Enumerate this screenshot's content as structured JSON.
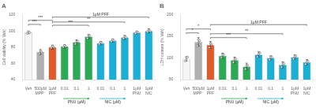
{
  "chart_data": [
    {
      "type": "bar",
      "title": "A",
      "ylabel": "Cell viability (% Veh)",
      "categories": [
        "Veh",
        [
          "500μM",
          "MPP⁺"
        ],
        [
          "1μM",
          "PFF"
        ],
        "0.01",
        "0.1",
        "1",
        "0.01",
        "0.1",
        "1",
        [
          "1μM",
          "PNU"
        ],
        [
          "1μM",
          "NIC"
        ]
      ],
      "values": [
        98,
        74,
        80,
        81,
        86,
        93,
        85,
        88,
        92,
        98,
        100
      ],
      "errors": [
        1.5,
        3,
        2.5,
        2,
        3,
        2.5,
        2,
        2,
        2.5,
        1.5,
        2.5
      ],
      "points": [
        [
          97,
          99,
          98
        ],
        [
          72,
          75,
          74
        ],
        [
          79,
          81,
          80
        ],
        [
          80,
          82,
          81
        ],
        [
          84,
          87,
          87
        ],
        [
          91,
          94,
          94
        ],
        [
          84,
          86,
          85
        ],
        [
          87,
          89,
          88
        ],
        [
          91,
          93,
          92
        ],
        [
          97,
          99,
          98
        ],
        [
          99,
          101,
          100
        ]
      ],
      "colors": [
        "#f5f5f5",
        "#b0b0b0",
        "#e05a2b",
        "#2aaa55",
        "#2aaa55",
        "#2aaa55",
        "#1ab0d5",
        "#1ab0d5",
        "#1ab0d5",
        "#1ab0d5",
        "#1ab0d5"
      ],
      "ylim": [
        40,
        120
      ],
      "yticks": [
        40,
        60,
        80,
        100,
        120
      ],
      "grid": false,
      "brackets": [
        {
          "x1": 0,
          "x2": 1,
          "y": 108,
          "label": "***"
        },
        {
          "x1": 0,
          "x2": 2,
          "y": 113,
          "label": "***"
        },
        {
          "x1": 2,
          "x2": 5,
          "y": 107,
          "label": "***"
        },
        {
          "x1": 2,
          "x2": 8,
          "y": 111,
          "label": "**"
        },
        {
          "x1": 2,
          "x2": 10,
          "y": 117,
          "label": "1μM PFF"
        }
      ],
      "groups": [
        {
          "label": "PNU (μM)",
          "from": 3,
          "to": 5,
          "color": "#2aaa55"
        },
        {
          "label": "NIC (μM)",
          "from": 6,
          "to": 8,
          "color": "#1ab0d5"
        }
      ]
    },
    {
      "type": "bar",
      "title": "B",
      "ylabel": "LDH content (% Veh)",
      "categories": [
        "Veh",
        [
          "500μM",
          "MPP⁺"
        ],
        [
          "1μM",
          "PFF"
        ],
        "0.01",
        "0.1",
        "1",
        "0.01",
        "0.1",
        "1",
        [
          "1μM",
          "PNU"
        ],
        [
          "1μM",
          "NIC"
        ]
      ],
      "values": [
        98,
        137,
        130,
        105,
        95,
        80,
        108,
        100,
        84,
        102,
        90
      ],
      "errors": [
        5,
        10,
        8,
        6,
        7,
        8,
        6,
        5,
        7,
        5,
        6
      ],
      "points": [
        [
          93,
          100,
          102
        ],
        [
          128,
          142,
          140
        ],
        [
          124,
          133,
          132
        ],
        [
          101,
          107,
          108
        ],
        [
          90,
          97,
          98
        ],
        [
          74,
          82,
          83
        ],
        [
          103,
          109,
          112
        ],
        [
          96,
          102,
          102
        ],
        [
          79,
          86,
          87
        ],
        [
          98,
          103,
          105
        ],
        [
          86,
          91,
          93
        ]
      ],
      "colors": [
        "#f5f5f5",
        "#b0b0b0",
        "#e05a2b",
        "#2aaa55",
        "#2aaa55",
        "#2aaa55",
        "#1ab0d5",
        "#1ab0d5",
        "#1ab0d5",
        "#1ab0d5",
        "#1ab0d5"
      ],
      "ylim": [
        50,
        200
      ],
      "yticks": [
        50,
        100,
        150,
        200
      ],
      "grid": false,
      "brackets": [
        {
          "x1": 0,
          "x2": 1,
          "y": 158,
          "label": "*"
        },
        {
          "x1": 0,
          "x2": 2,
          "y": 167,
          "label": "*"
        },
        {
          "x1": 2,
          "x2": 5,
          "y": 147,
          "label": "***"
        },
        {
          "x1": 2,
          "x2": 8,
          "y": 156,
          "label": "**"
        },
        {
          "x1": 2,
          "x2": 10,
          "y": 177,
          "label": "1μM PFF"
        }
      ],
      "groups": [
        {
          "label": "PNU (μM)",
          "from": 3,
          "to": 5,
          "color": "#2aaa55"
        },
        {
          "label": "NIC (μM)",
          "from": 6,
          "to": 8,
          "color": "#1ab0d5"
        }
      ]
    }
  ]
}
